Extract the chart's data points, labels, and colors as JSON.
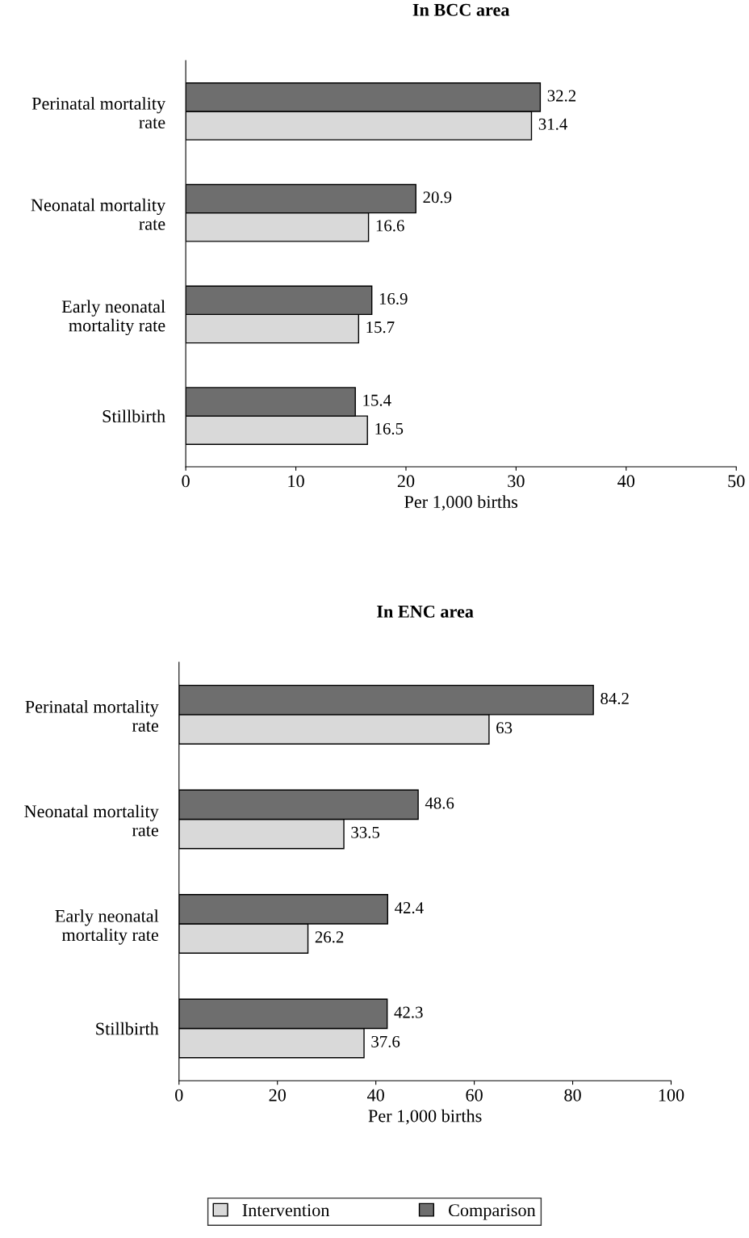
{
  "chart_data": [
    {
      "type": "bar",
      "orientation": "horizontal",
      "title": "In BCC area",
      "xlabel": "Per 1,000 births",
      "categories": [
        "Perinatal mortality\nrate",
        "Neonatal mortality\nrate",
        "Early neonatal\nmortality rate",
        "Stillbirth"
      ],
      "series": [
        {
          "name": "Intervention",
          "color": "#d9d9d9",
          "values": [
            31.4,
            16.6,
            15.7,
            16.5
          ]
        },
        {
          "name": "Comparison",
          "color": "#6e6e6e",
          "values": [
            32.2,
            20.9,
            16.9,
            15.4
          ]
        }
      ],
      "xlim": [
        0,
        50
      ],
      "xticks": [
        0,
        10,
        20,
        30,
        40,
        50
      ],
      "data_labels": true,
      "grid": false,
      "legend": "bottom"
    },
    {
      "type": "bar",
      "orientation": "horizontal",
      "title": "In ENC area",
      "xlabel": "Per 1,000 births",
      "categories": [
        "Perinatal mortality\nrate",
        "Neonatal mortality\nrate",
        "Early neonatal\nmortality rate",
        "Stillbirth"
      ],
      "series": [
        {
          "name": "Intervention",
          "color": "#d9d9d9",
          "values": [
            63,
            33.5,
            26.2,
            37.6
          ]
        },
        {
          "name": "Comparison",
          "color": "#6e6e6e",
          "values": [
            84.2,
            48.6,
            42.4,
            42.3
          ]
        }
      ],
      "xlim": [
        0,
        100
      ],
      "xticks": [
        0,
        20,
        40,
        60,
        80,
        100
      ],
      "data_labels": true,
      "grid": false,
      "legend": "bottom"
    }
  ]
}
